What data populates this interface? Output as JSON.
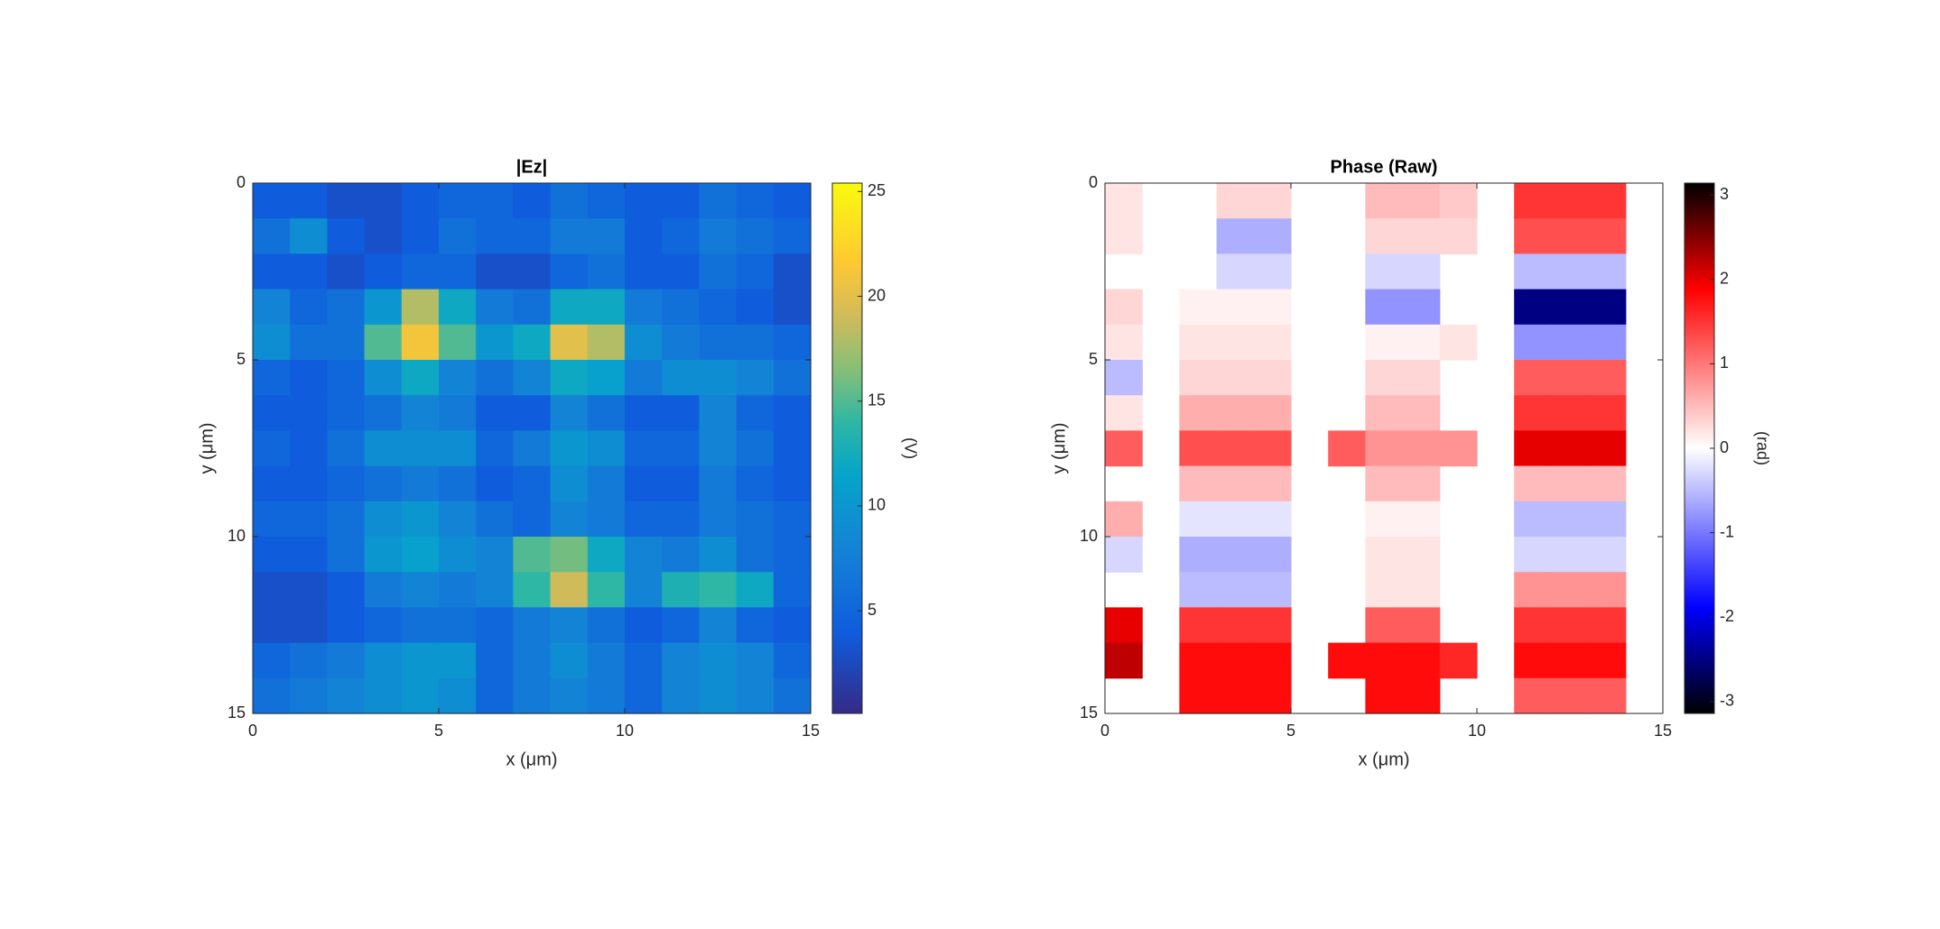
{
  "chart_data": [
    {
      "type": "heatmap",
      "title": "|Ez|",
      "xlabel": "x (μm)",
      "ylabel": "y (μm)",
      "xlim": [
        0,
        15
      ],
      "ylim": [
        0,
        15
      ],
      "y_reversed": true,
      "xticks": [
        0,
        5,
        10,
        15
      ],
      "yticks": [
        0,
        5,
        10,
        15
      ],
      "clim": [
        0.1,
        25.4
      ],
      "cticks": [
        5,
        10,
        15,
        20,
        25
      ],
      "clabel": "(V)",
      "colormap": [
        [
          0,
          "#352a87"
        ],
        [
          0.15,
          "#0f5cdd"
        ],
        [
          0.3,
          "#1481d6"
        ],
        [
          0.45,
          "#06a4ca"
        ],
        [
          0.55,
          "#2eb7a4"
        ],
        [
          0.65,
          "#87bf77"
        ],
        [
          0.75,
          "#d1bb59"
        ],
        [
          0.85,
          "#fec832"
        ],
        [
          1,
          "#f9fb0e"
        ]
      ],
      "z": [
        [
          4,
          4,
          3,
          3,
          4,
          5,
          5,
          4,
          6,
          5,
          4,
          4,
          6,
          5,
          4
        ],
        [
          6,
          9,
          4,
          3,
          4,
          6,
          5,
          5,
          7,
          7,
          4,
          5,
          7,
          6,
          5
        ],
        [
          4,
          4,
          3,
          4,
          5,
          5,
          3,
          3,
          5,
          6,
          4,
          4,
          6,
          5,
          3
        ],
        [
          8,
          5,
          6,
          10,
          18,
          12,
          7,
          6,
          12,
          12,
          7,
          6,
          5,
          4,
          3
        ],
        [
          9,
          6,
          6,
          15,
          21,
          15,
          10,
          12,
          20,
          18,
          9,
          7,
          6,
          6,
          5
        ],
        [
          5,
          4,
          5,
          9,
          12,
          8,
          6,
          8,
          12,
          11,
          7,
          9,
          9,
          8,
          6
        ],
        [
          4,
          4,
          5,
          6,
          8,
          7,
          4,
          4,
          8,
          6,
          4,
          4,
          8,
          5,
          4
        ],
        [
          5,
          4,
          6,
          9,
          9,
          9,
          5,
          7,
          10,
          9,
          5,
          5,
          8,
          6,
          4
        ],
        [
          4,
          4,
          5,
          6,
          7,
          6,
          4,
          5,
          9,
          7,
          4,
          4,
          7,
          5,
          4
        ],
        [
          5,
          5,
          6,
          9,
          10,
          8,
          6,
          5,
          8,
          7,
          5,
          5,
          7,
          6,
          5
        ],
        [
          4,
          4,
          6,
          10,
          11,
          9,
          8,
          15,
          16,
          12,
          8,
          7,
          9,
          6,
          5
        ],
        [
          3,
          3,
          4,
          7,
          8,
          7,
          8,
          14,
          19,
          14,
          8,
          13,
          14,
          12,
          5
        ],
        [
          3,
          3,
          4,
          5,
          6,
          6,
          5,
          7,
          8,
          6,
          4,
          5,
          8,
          5,
          4
        ],
        [
          5,
          6,
          7,
          9,
          10,
          10,
          5,
          7,
          9,
          7,
          5,
          8,
          9,
          8,
          5
        ],
        [
          6,
          7,
          8,
          9,
          10,
          9,
          5,
          7,
          8,
          7,
          5,
          8,
          9,
          8,
          6
        ]
      ]
    },
    {
      "type": "heatmap",
      "title": "Phase (Raw)",
      "xlabel": "x (μm)",
      "ylabel": "y (μm)",
      "xlim": [
        0,
        15
      ],
      "ylim": [
        0,
        15
      ],
      "y_reversed": true,
      "xticks": [
        0,
        5,
        10,
        15
      ],
      "yticks": [
        0,
        5,
        10,
        15
      ],
      "clim": [
        -3.14,
        3.14
      ],
      "cticks": [
        -3,
        -2,
        -1,
        0,
        1,
        2,
        3
      ],
      "clabel": "(rad)",
      "colormap": [
        [
          0,
          "#000000"
        ],
        [
          0.2,
          "#0000ff"
        ],
        [
          0.5,
          "#ffffff"
        ],
        [
          0.8,
          "#ff0000"
        ],
        [
          1,
          "#000000"
        ]
      ],
      "z": [
        [
          0.2,
          null,
          null,
          0.3,
          0.3,
          null,
          null,
          0.5,
          0.5,
          0.4,
          null,
          1.5,
          1.5,
          1.5,
          null
        ],
        [
          0.2,
          null,
          null,
          -0.6,
          -0.6,
          null,
          null,
          0.3,
          0.3,
          0.3,
          null,
          1.3,
          1.3,
          1.3,
          null
        ],
        [
          null,
          null,
          null,
          -0.3,
          -0.3,
          null,
          null,
          -0.3,
          -0.3,
          null,
          null,
          -0.5,
          -0.5,
          -0.5,
          null
        ],
        [
          0.3,
          null,
          0.1,
          0.1,
          0.1,
          null,
          null,
          -0.8,
          -0.8,
          null,
          null,
          -2.5,
          -2.5,
          -2.5,
          null
        ],
        [
          0.2,
          null,
          0.2,
          0.2,
          0.2,
          null,
          null,
          0.1,
          0.1,
          0.2,
          null,
          -0.8,
          -0.8,
          -0.8,
          null
        ],
        [
          -0.5,
          null,
          0.3,
          0.3,
          0.3,
          null,
          null,
          0.3,
          0.3,
          null,
          null,
          1.2,
          1.2,
          1.2,
          null
        ],
        [
          0.2,
          null,
          0.6,
          0.6,
          0.6,
          null,
          null,
          0.5,
          0.5,
          null,
          null,
          1.5,
          1.5,
          1.5,
          null
        ],
        [
          1.2,
          null,
          1.3,
          1.3,
          1.3,
          null,
          1.2,
          0.8,
          0.8,
          0.8,
          null,
          2,
          2,
          2,
          null
        ],
        [
          null,
          null,
          0.5,
          0.5,
          0.5,
          null,
          null,
          0.5,
          0.5,
          null,
          null,
          0.5,
          0.5,
          0.5,
          null
        ],
        [
          0.6,
          null,
          -0.2,
          -0.2,
          -0.2,
          null,
          null,
          0.1,
          0.1,
          null,
          null,
          -0.5,
          -0.5,
          -0.5,
          null
        ],
        [
          -0.3,
          null,
          -0.6,
          -0.6,
          -0.6,
          null,
          null,
          0.2,
          0.2,
          null,
          null,
          -0.3,
          -0.3,
          -0.3,
          null
        ],
        [
          null,
          null,
          -0.5,
          -0.5,
          -0.5,
          null,
          null,
          0.2,
          0.2,
          null,
          null,
          0.8,
          0.8,
          0.8,
          null
        ],
        [
          2,
          null,
          1.5,
          1.5,
          1.5,
          null,
          null,
          1.2,
          1.2,
          null,
          null,
          1.5,
          1.5,
          1.5,
          null
        ],
        [
          2.2,
          null,
          1.8,
          1.8,
          1.8,
          null,
          1.8,
          1.8,
          1.8,
          1.6,
          null,
          1.8,
          1.8,
          1.8,
          null
        ],
        [
          null,
          null,
          1.8,
          1.8,
          1.8,
          null,
          null,
          1.8,
          1.8,
          null,
          null,
          1.2,
          1.2,
          1.2,
          null
        ]
      ]
    }
  ]
}
